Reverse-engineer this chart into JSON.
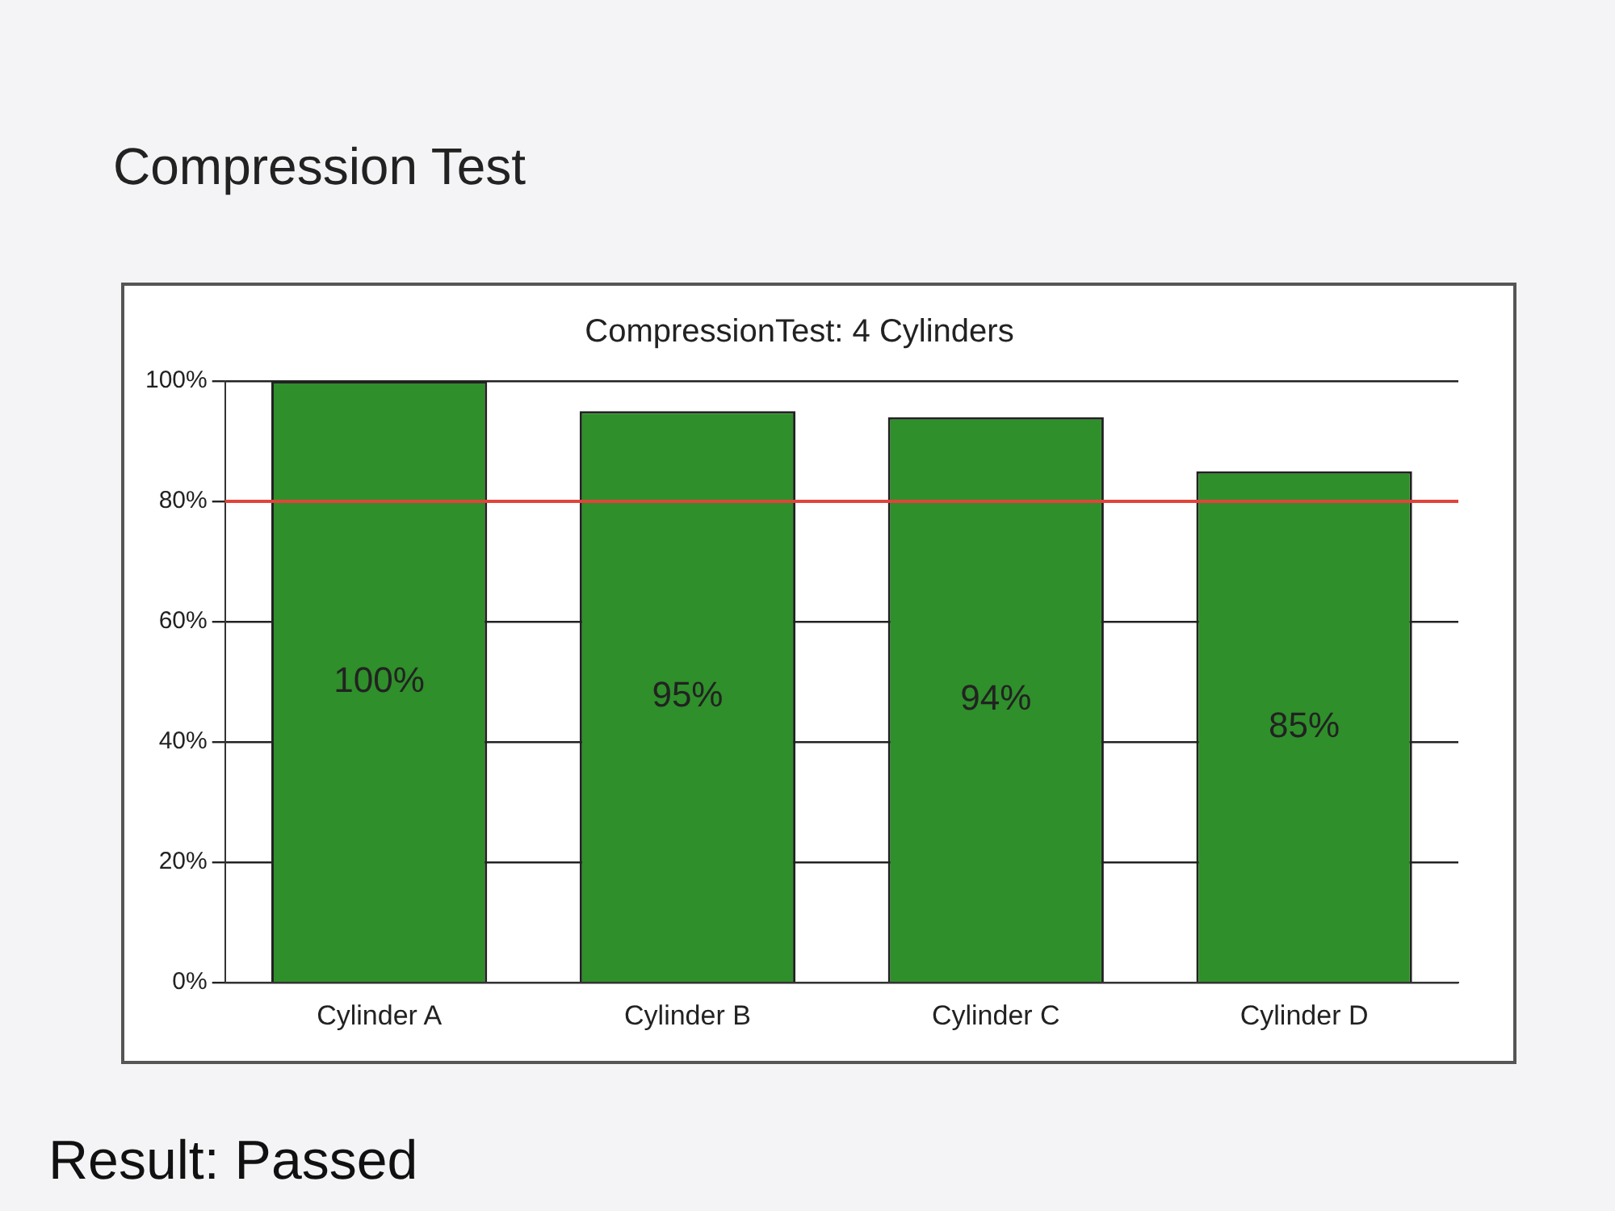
{
  "chart_data": {
    "type": "bar",
    "title": "CompressionTest: 4 Cylinders",
    "subtitle": "Compression Test",
    "categories": [
      "Cylinder A",
      "Cylinder B",
      "Cylinder C",
      "Cylinder D"
    ],
    "values": [
      100,
      95,
      94,
      85
    ],
    "value_labels": [
      "100%",
      "95%",
      "94%",
      "85%"
    ],
    "color": "#2f8f2a",
    "ylim": [
      0,
      100
    ],
    "yticks": [
      {
        "value": 0,
        "label": "0%"
      },
      {
        "value": 20,
        "label": "20%"
      },
      {
        "value": 40,
        "label": "40%"
      },
      {
        "value": 60,
        "label": "60%"
      },
      {
        "value": 80,
        "label": "80%"
      },
      {
        "value": 100,
        "label": "100%"
      }
    ],
    "grid": "y",
    "legend": false,
    "ref_lines": [
      {
        "axis": "y",
        "value": 80,
        "color": "#e0443a"
      }
    ],
    "annotations": [
      "Result: Passed"
    ]
  }
}
